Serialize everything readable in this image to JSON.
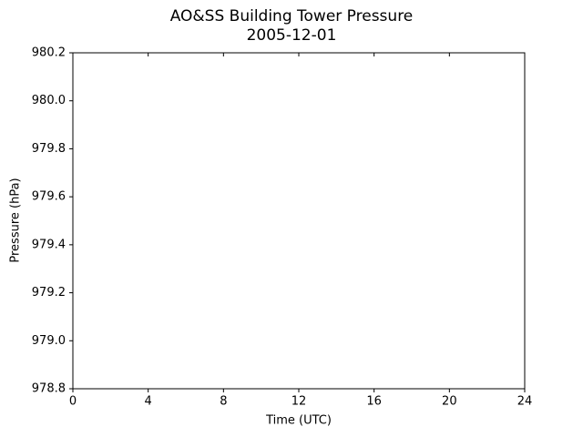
{
  "chart_data": {
    "type": "line",
    "title": "AO&SS Building Tower Pressure",
    "subtitle": "2005-12-01",
    "x_label": "Time (UTC)",
    "y_label": "Pressure (hPa)",
    "xlim": [
      0,
      24
    ],
    "xticks": [
      0,
      4,
      8,
      12,
      16,
      20,
      24
    ],
    "ylim": [
      978.8,
      980.2
    ],
    "yticks": [
      978.8,
      {
        "value": 979,
        "label": "979.0"
      },
      979.2,
      979.4,
      979.6,
      979.8,
      {
        "value": 980,
        "label": "980.0"
      },
      980.2
    ]
  }
}
